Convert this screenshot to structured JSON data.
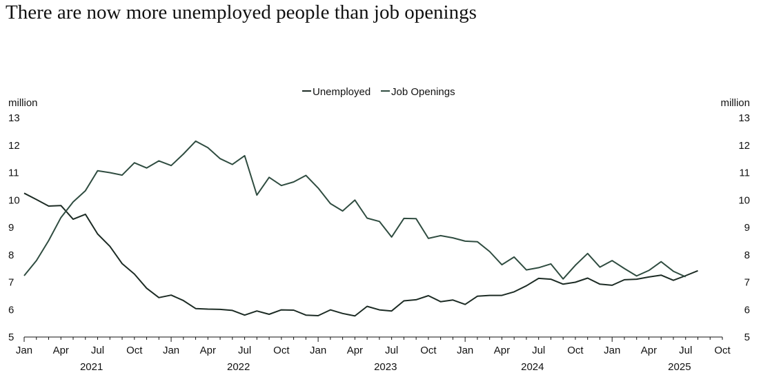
{
  "title": "There are now more unemployed people than job openings",
  "chart_data": {
    "type": "line",
    "title": "There are now more unemployed people than job openings",
    "y_unit_left": "million",
    "y_unit_right": "million",
    "ylim": [
      5,
      13
    ],
    "yticks": [
      5,
      6,
      7,
      8,
      9,
      10,
      11,
      12,
      13
    ],
    "x_start": "2021-01",
    "x_end": "2025-10",
    "month_tick_labels": [
      "Jan",
      "Apr",
      "Jul",
      "Oct",
      "Jan",
      "Apr",
      "Jul",
      "Oct",
      "Jan",
      "Apr",
      "Jul",
      "Oct",
      "Jan",
      "Apr",
      "Jul",
      "Oct",
      "Jan",
      "Apr",
      "Jul",
      "Oct"
    ],
    "year_labels": [
      "2021",
      "2022",
      "2023",
      "2024",
      "2025"
    ],
    "legend": {
      "position": "top-center",
      "entries": [
        "Unemployed",
        "Job Openings"
      ]
    },
    "colors": {
      "Unemployed": "#1c2b24",
      "Job Openings": "#2f4c40"
    },
    "series": [
      {
        "name": "Unemployed",
        "x": [
          "2021-01",
          "2021-02",
          "2021-03",
          "2021-04",
          "2021-05",
          "2021-06",
          "2021-07",
          "2021-08",
          "2021-09",
          "2021-10",
          "2021-11",
          "2021-12",
          "2022-01",
          "2022-02",
          "2022-03",
          "2022-04",
          "2022-05",
          "2022-06",
          "2022-07",
          "2022-08",
          "2022-09",
          "2022-10",
          "2022-11",
          "2022-12",
          "2023-01",
          "2023-02",
          "2023-03",
          "2023-04",
          "2023-05",
          "2023-06",
          "2023-07",
          "2023-08",
          "2023-09",
          "2023-10",
          "2023-11",
          "2023-12",
          "2024-01",
          "2024-02",
          "2024-03",
          "2024-04",
          "2024-05",
          "2024-06",
          "2024-07",
          "2024-08",
          "2024-09",
          "2024-10",
          "2024-11",
          "2024-12",
          "2025-01",
          "2025-02",
          "2025-03",
          "2025-04",
          "2025-05",
          "2025-06",
          "2025-07",
          "2025-08"
        ],
        "values": [
          10.25,
          10.02,
          9.78,
          9.8,
          9.3,
          9.48,
          8.76,
          8.31,
          7.68,
          7.3,
          6.78,
          6.44,
          6.53,
          6.33,
          6.04,
          6.02,
          6.01,
          5.97,
          5.8,
          5.95,
          5.83,
          5.99,
          5.98,
          5.8,
          5.78,
          5.99,
          5.86,
          5.77,
          6.12,
          5.99,
          5.95,
          6.32,
          6.36,
          6.51,
          6.29,
          6.35,
          6.19,
          6.49,
          6.52,
          6.52,
          6.65,
          6.87,
          7.14,
          7.11,
          6.93,
          7.0,
          7.15,
          6.93,
          6.89,
          7.09,
          7.11,
          7.19,
          7.26,
          7.07,
          7.24,
          7.42
        ]
      },
      {
        "name": "Job Openings",
        "x": [
          "2021-01",
          "2021-02",
          "2021-03",
          "2021-04",
          "2021-05",
          "2021-06",
          "2021-07",
          "2021-08",
          "2021-09",
          "2021-10",
          "2021-11",
          "2021-12",
          "2022-01",
          "2022-02",
          "2022-03",
          "2022-04",
          "2022-05",
          "2022-06",
          "2022-07",
          "2022-08",
          "2022-09",
          "2022-10",
          "2022-11",
          "2022-12",
          "2023-01",
          "2023-02",
          "2023-03",
          "2023-04",
          "2023-05",
          "2023-06",
          "2023-07",
          "2023-08",
          "2023-09",
          "2023-10",
          "2023-11",
          "2023-12",
          "2024-01",
          "2024-02",
          "2024-03",
          "2024-04",
          "2024-05",
          "2024-06",
          "2024-07",
          "2024-08",
          "2024-09",
          "2024-10",
          "2024-11",
          "2024-12",
          "2025-01",
          "2025-02",
          "2025-03",
          "2025-04",
          "2025-05",
          "2025-06",
          "2025-07"
        ],
        "values": [
          7.24,
          7.79,
          8.52,
          9.36,
          9.93,
          10.34,
          11.07,
          11.0,
          10.91,
          11.36,
          11.17,
          11.43,
          11.26,
          11.68,
          12.15,
          11.91,
          11.51,
          11.3,
          11.62,
          10.18,
          10.83,
          10.53,
          10.66,
          10.9,
          10.44,
          9.87,
          9.6,
          10.0,
          9.34,
          9.22,
          8.65,
          9.33,
          9.32,
          8.6,
          8.7,
          8.62,
          8.5,
          8.48,
          8.12,
          7.64,
          7.92,
          7.45,
          7.53,
          7.67,
          7.12,
          7.62,
          8.05,
          7.55,
          7.79,
          7.5,
          7.23,
          7.43,
          7.75,
          7.4,
          7.2
        ]
      }
    ]
  }
}
